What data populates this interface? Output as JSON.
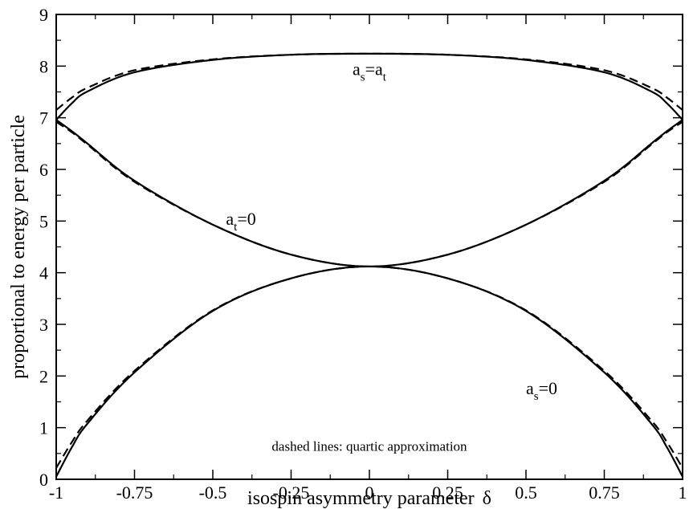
{
  "chart_data": {
    "type": "line",
    "xlabel": "isospin asymmetry parameter",
    "xlabel_symbol": "δ",
    "ylabel": "proportional to energy per particle",
    "xlim": [
      -1,
      1
    ],
    "ylim": [
      0,
      9
    ],
    "x_ticks": [
      "-1",
      "-0.75",
      "-0.5",
      "-0.25",
      "0",
      "0.25",
      "0.5",
      "0.75",
      "1"
    ],
    "y_ticks": [
      "0",
      "1",
      "2",
      "3",
      "4",
      "5",
      "6",
      "7",
      "8",
      "9"
    ],
    "grid": false,
    "annotation_note": "dashed lines: quartic approximation",
    "series": [
      {
        "label": "a_s=a_t",
        "style": "solid",
        "x": [
          -1,
          -0.95,
          -0.9,
          -0.75,
          -0.5,
          -0.25,
          0,
          0.25,
          0.5,
          0.75,
          0.9,
          0.95,
          1
        ],
        "y": [
          6.96,
          7.28,
          7.51,
          7.88,
          8.12,
          8.22,
          8.24,
          8.22,
          8.12,
          7.88,
          7.51,
          7.28,
          6.96
        ]
      },
      {
        "label": "a_s=a_t",
        "style": "dashed",
        "x": [
          -1,
          -0.95,
          -0.9,
          -0.75,
          -0.5,
          -0.25,
          0,
          0.25,
          0.5,
          0.75,
          0.9,
          0.95,
          1
        ],
        "y": [
          7.15,
          7.39,
          7.58,
          7.92,
          8.13,
          8.22,
          8.24,
          8.22,
          8.13,
          7.92,
          7.58,
          7.39,
          7.15
        ]
      },
      {
        "label": "a_t=0",
        "style": "solid",
        "x": [
          -1,
          -0.95,
          -0.9,
          -0.75,
          -0.5,
          -0.25,
          0,
          0.25,
          0.5,
          0.75,
          0.9,
          0.95,
          1
        ],
        "y": [
          6.96,
          6.74,
          6.5,
          5.78,
          4.93,
          4.35,
          4.12,
          4.35,
          4.93,
          5.78,
          6.5,
          6.74,
          6.96
        ]
      },
      {
        "label": "a_t=0",
        "style": "dashed",
        "x": [
          -1,
          -0.95,
          -0.9,
          -0.75,
          -0.5,
          -0.25,
          0,
          0.25,
          0.5,
          0.75,
          0.9,
          0.95,
          1
        ],
        "y": [
          6.92,
          6.72,
          6.48,
          5.76,
          4.93,
          4.35,
          4.12,
          4.35,
          4.93,
          5.76,
          6.48,
          6.72,
          6.92
        ]
      },
      {
        "label": "a_s=0",
        "style": "solid",
        "x": [
          -1,
          -0.95,
          -0.9,
          -0.75,
          -0.5,
          -0.25,
          0,
          0.25,
          0.5,
          0.75,
          0.9,
          0.95,
          1
        ],
        "y": [
          0.05,
          0.62,
          1.08,
          2.07,
          3.26,
          3.89,
          4.12,
          3.89,
          3.26,
          2.07,
          1.08,
          0.62,
          0.05
        ]
      },
      {
        "label": "a_s=0",
        "style": "dashed",
        "x": [
          -1,
          -0.95,
          -0.9,
          -0.75,
          -0.5,
          -0.25,
          0,
          0.25,
          0.5,
          0.75,
          0.9,
          0.95,
          1
        ],
        "y": [
          0.22,
          0.72,
          1.14,
          2.1,
          3.27,
          3.89,
          4.12,
          3.89,
          3.27,
          2.1,
          1.14,
          0.72,
          0.22
        ]
      }
    ],
    "curve_labels": [
      {
        "base": "a",
        "sub": "s",
        "mid": "=a",
        "sub2": "t",
        "x": 0,
        "y": 7.83
      },
      {
        "base": "a",
        "sub": "t",
        "mid": "=0",
        "sub2": "",
        "x": -0.41,
        "y": 4.93
      },
      {
        "base": "a",
        "sub": "s",
        "mid": "=0",
        "sub2": "",
        "x": 0.55,
        "y": 1.65
      }
    ]
  }
}
